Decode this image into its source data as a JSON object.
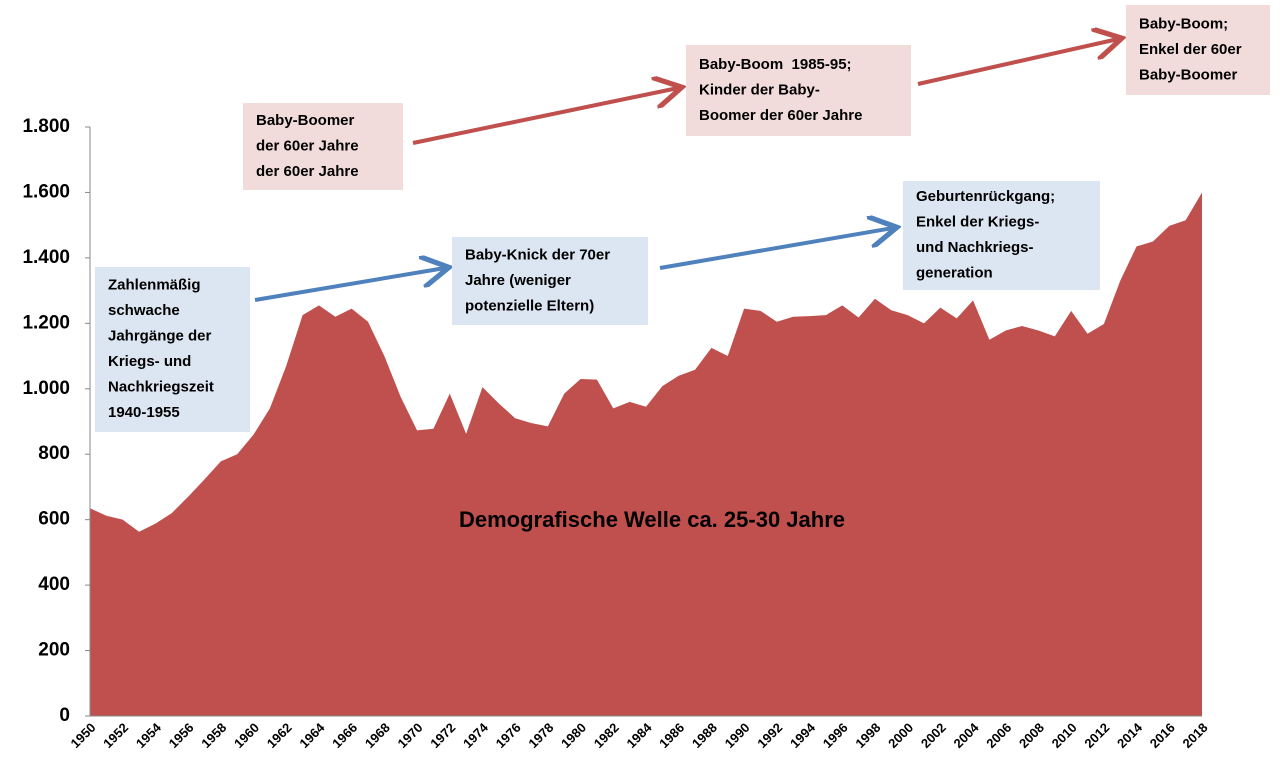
{
  "chart_data": {
    "type": "area",
    "categories": [
      "1950",
      null,
      "1952",
      null,
      "1954",
      null,
      "1956",
      null,
      "1958",
      null,
      "1960",
      null,
      "1962",
      null,
      "1964",
      null,
      "1966",
      null,
      "1968",
      null,
      "1970",
      null,
      "1972",
      null,
      "1974",
      null,
      "1976",
      null,
      "1978",
      null,
      "1980",
      null,
      "1982",
      null,
      "1984",
      null,
      "1986",
      null,
      "1988",
      null,
      "1990",
      null,
      "1992",
      null,
      "1994",
      null,
      "1996",
      null,
      "1998",
      null,
      "2000",
      null,
      "2002",
      null,
      "2004",
      null,
      "2006",
      null,
      "2008",
      null,
      "2010",
      null,
      "2012",
      null,
      "2014",
      null,
      "2016",
      null,
      "2018"
    ],
    "values": [
      635,
      612,
      600,
      563,
      588,
      620,
      670,
      723,
      778,
      800,
      860,
      940,
      1070,
      1225,
      1255,
      1220,
      1245,
      1205,
      1100,
      975,
      873,
      878,
      985,
      862,
      1005,
      955,
      910,
      895,
      885,
      985,
      1030,
      1028,
      940,
      960,
      945,
      1008,
      1040,
      1058,
      1125,
      1100,
      1245,
      1238,
      1205,
      1220,
      1222,
      1225,
      1255,
      1218,
      1275,
      1240,
      1225,
      1200,
      1248,
      1215,
      1270,
      1150,
      1178,
      1192,
      1178,
      1160,
      1238,
      1168,
      1198,
      1330,
      1435,
      1450,
      1498,
      1515,
      1600
    ],
    "color": "#c0504d",
    "ylim": [
      0,
      1800
    ],
    "yticks": [
      0,
      200,
      400,
      600,
      800,
      {
        "value": 1000,
        "label": "1.000"
      },
      {
        "value": 1200,
        "label": "1.200"
      },
      {
        "value": 1400,
        "label": "1.400"
      },
      {
        "value": 1600,
        "label": "1.600"
      },
      {
        "value": 1800,
        "label": "1.800"
      }
    ],
    "center_label": "Demografische Welle ca. 25-30 Jahre",
    "annotations": [
      {
        "lines": [
          "Baby-Boomer",
          "der 60er Jahre",
          "der 60er Jahre"
        ],
        "color": "#f2dcdb"
      },
      {
        "lines": [
          "Baby-Boom  1985-95;",
          "Kinder der Baby-",
          "Boomer der 60er Jahre"
        ],
        "color": "#f2dcdb"
      },
      {
        "lines": [
          "Baby-Boom;",
          "Enkel der 60er",
          "Baby-Boomer"
        ],
        "color": "#f2dcdb"
      },
      {
        "lines": [
          "Zahlenmäßig",
          "schwache",
          "Jahrgänge der",
          "Kriegs- und",
          "Nachkriegszeit",
          "1940-1955"
        ],
        "color": "#dce6f2"
      },
      {
        "lines": [
          "Baby-Knick der 70er",
          "Jahre (weniger",
          "potenzielle Eltern)"
        ],
        "color": "#dce6f2"
      },
      {
        "lines": [
          "Geburtenrückgang;",
          "Enkel der Kriegs-",
          "und Nachkriegs-",
          "generation"
        ],
        "color": "#dce6f2"
      }
    ]
  }
}
